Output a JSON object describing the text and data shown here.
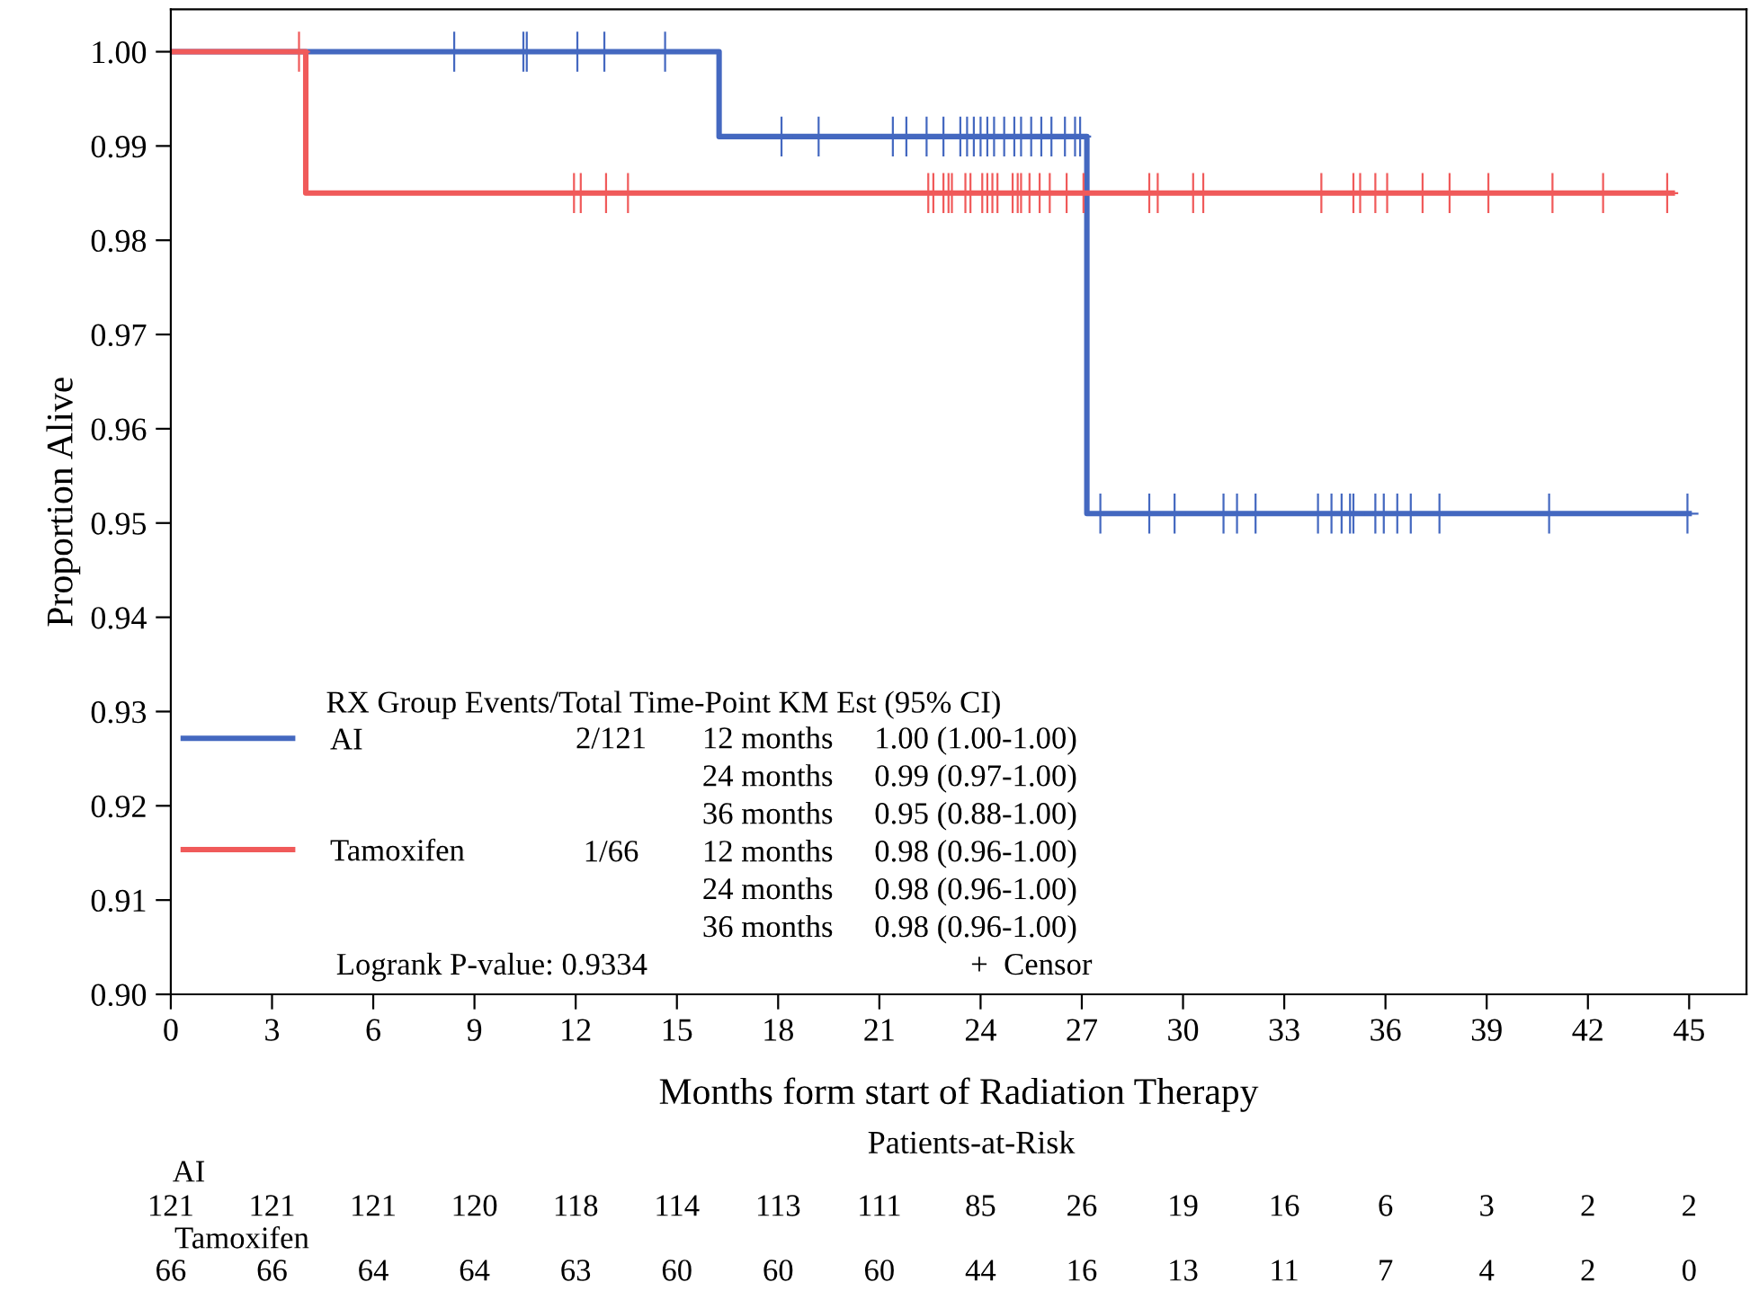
{
  "chart_data": {
    "type": "step",
    "xlabel": "Months form start of Radiation Therapy",
    "ylabel": "Proportion Alive",
    "xlim": [
      0,
      46.7
    ],
    "ylim": [
      0.9,
      1.0045
    ],
    "xticks": [
      0,
      3,
      6,
      9,
      12,
      15,
      18,
      21,
      24,
      27,
      30,
      33,
      36,
      39,
      42,
      45
    ],
    "yticks": [
      {
        "value": 0.9,
        "label": "0.90"
      },
      {
        "value": 0.91,
        "label": "0.91"
      },
      {
        "value": 0.92,
        "label": "0.92"
      },
      {
        "value": 0.93,
        "label": "0.93"
      },
      {
        "value": 0.94,
        "label": "0.94"
      },
      {
        "value": 0.95,
        "label": "0.95"
      },
      {
        "value": 0.96,
        "label": "0.96"
      },
      {
        "value": 0.97,
        "label": "0.97"
      },
      {
        "value": 0.98,
        "label": "0.98"
      },
      {
        "value": 0.99,
        "label": "0.99"
      },
      {
        "value": 1.0,
        "label": "1.00"
      }
    ],
    "grid": false,
    "legend": "bottom left",
    "marker": "none",
    "line_style": "solid",
    "series": [
      {
        "name": "AI",
        "color": "#4468c0",
        "x": [
          0,
          16.25,
          27.15,
          45
        ],
        "values": [
          1.0,
          0.991,
          0.951,
          0.951
        ]
      },
      {
        "name": "Tamoxifen",
        "color": "#f05a5a",
        "x": [
          0,
          4.0,
          44.5
        ],
        "values": [
          1.0,
          0.985,
          0.985
        ]
      },
      {
        "type": "scatter",
        "marker": "cross",
        "color": "#4468c0",
        "x": [
          8.4,
          10.45,
          10.55,
          12.05,
          12.85,
          14.65,
          18.1,
          19.2,
          21.4,
          21.8,
          22.4,
          22.9,
          23.4,
          23.6,
          23.8,
          24.0,
          24.2,
          24.4,
          24.7,
          25.0,
          25.2,
          25.5,
          25.8,
          26.1,
          26.5,
          26.8,
          26.95,
          27.55,
          29.0,
          29.75,
          31.2,
          31.6,
          32.15,
          34.0,
          34.4,
          34.7,
          34.95,
          35.05,
          35.7,
          35.95,
          36.35,
          36.75,
          37.6,
          40.85,
          44.95
        ],
        "values": [
          1.0,
          1.0,
          1.0,
          1.0,
          1.0,
          1.0,
          0.991,
          0.991,
          0.991,
          0.991,
          0.991,
          0.991,
          0.991,
          0.991,
          0.991,
          0.991,
          0.991,
          0.991,
          0.991,
          0.991,
          0.991,
          0.991,
          0.991,
          0.991,
          0.991,
          0.991,
          0.991,
          0.951,
          0.951,
          0.951,
          0.951,
          0.951,
          0.951,
          0.951,
          0.951,
          0.951,
          0.951,
          0.951,
          0.951,
          0.951,
          0.951,
          0.951,
          0.951,
          0.951,
          0.951
        ]
      },
      {
        "type": "scatter",
        "marker": "cross",
        "color": "#f05a5a",
        "x": [
          3.8,
          11.95,
          12.15,
          12.9,
          13.55,
          22.45,
          22.6,
          22.9,
          23.05,
          23.15,
          23.55,
          23.7,
          24.05,
          24.2,
          24.35,
          24.5,
          24.95,
          25.1,
          25.2,
          25.45,
          25.75,
          26.05,
          26.55,
          27.05,
          29.0,
          29.25,
          30.3,
          30.6,
          34.1,
          35.05,
          35.25,
          35.7,
          36.05,
          37.1,
          37.9,
          39.05,
          40.95,
          42.45,
          44.35
        ],
        "values": [
          1.0,
          0.985,
          0.985,
          0.985,
          0.985,
          0.985,
          0.985,
          0.985,
          0.985,
          0.985,
          0.985,
          0.985,
          0.985,
          0.985,
          0.985,
          0.985,
          0.985,
          0.985,
          0.985,
          0.985,
          0.985,
          0.985,
          0.985,
          0.985,
          0.985,
          0.985,
          0.985,
          0.985,
          0.985,
          0.985,
          0.985,
          0.985,
          0.985,
          0.985,
          0.985,
          0.985,
          0.985,
          0.985,
          0.985
        ]
      }
    ],
    "annotations": [
      "RX Group Events/Total Time-Point KM Est (95% CI)",
      "2/121",
      "12 months",
      "1.00 (1.00-1.00)",
      "24 months",
      "0.99 (0.97-1.00)",
      "36 months",
      "0.95 (0.88-1.00)",
      "1/66",
      "12 months",
      "0.98 (0.96-1.00)",
      "24 months",
      "0.98 (0.96-1.00)",
      "36 months",
      "0.98 (0.96-1.00)",
      "Logrank P-value: 0.9334",
      "+  Censor",
      "Patients-at-Risk",
      "AI",
      "121",
      "121",
      "121",
      "120",
      "118",
      "114",
      "113",
      "111",
      "85",
      "26",
      "19",
      "16",
      "6",
      "3",
      "2",
      "2",
      "Tamoxifen",
      "66",
      "66",
      "64",
      "64",
      "63",
      "60",
      "60",
      "60",
      "44",
      "16",
      "13",
      "11",
      "7",
      "4",
      "2",
      "0"
    ]
  }
}
